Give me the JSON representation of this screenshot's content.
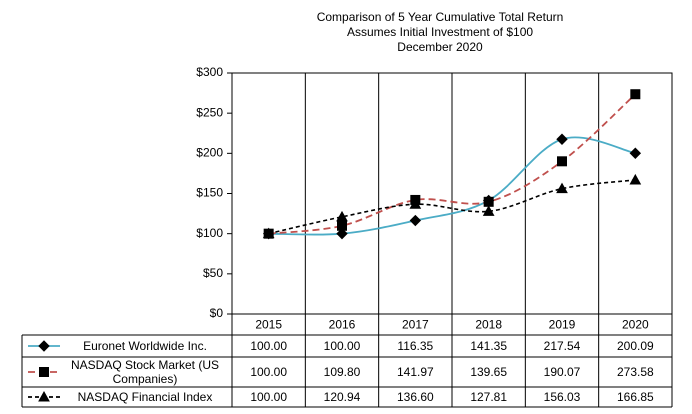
{
  "chart_data": {
    "type": "line",
    "title": "Comparison  of 5 Year Cumulative  Total Return",
    "subtitle": [
      "Assumes Initial Investment  of $100",
      "December  2020"
    ],
    "categories": [
      "2015",
      "2016",
      "2017",
      "2018",
      "2019",
      "2020"
    ],
    "ylim": [
      0,
      300
    ],
    "yticks": [
      {
        "value": 0,
        "label": "$0"
      },
      {
        "value": 50,
        "label": "$50"
      },
      {
        "value": 100,
        "label": "$100"
      },
      {
        "value": 150,
        "label": "$150"
      },
      {
        "value": 200,
        "label": "$200"
      },
      {
        "value": 250,
        "label": "$250"
      },
      {
        "value": 300,
        "label": "$300"
      }
    ],
    "series": [
      {
        "name": "Euronet Worldwide Inc.",
        "color": "#4bacc6",
        "dash": "solid",
        "marker": "diamond",
        "values": [
          100,
          100,
          116.35,
          141.35,
          217.54,
          200.09
        ],
        "value_labels": [
          "100.00",
          "100.00",
          "116.35",
          "141.35",
          "217.54",
          "200.09"
        ]
      },
      {
        "name": "NASDAQ Stock Market (US Companies)",
        "color": "#c0504d",
        "dash": "dashed",
        "marker": "square",
        "values": [
          100,
          109.8,
          141.97,
          139.65,
          190.07,
          273.58
        ],
        "value_labels": [
          "100.00",
          "109.80",
          "141.97",
          "139.65",
          "190.07",
          "273.58"
        ]
      },
      {
        "name": "NASDAQ Financial Index",
        "color": "#000000",
        "dash": "dotted",
        "marker": "triangle",
        "values": [
          100,
          120.94,
          136.6,
          127.81,
          156.03,
          166.85
        ],
        "value_labels": [
          "100.00",
          "120.94",
          "136.60",
          "127.81",
          "156.03",
          "166.85"
        ]
      }
    ]
  }
}
